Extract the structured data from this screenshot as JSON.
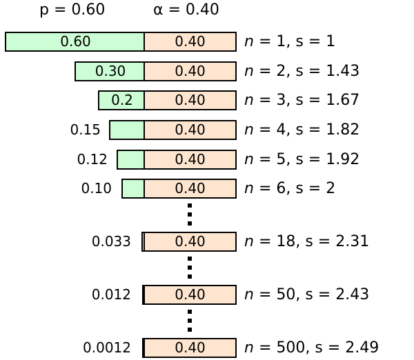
{
  "header": {
    "p_label": "p = 0.60",
    "alpha_label": "α = 0.40"
  },
  "rows": [
    {
      "p": "0.60",
      "p_inside": true,
      "alpha": "0.40",
      "n_var": "n",
      "n_rest": " = 1, s = 1"
    },
    {
      "p": "0.30",
      "p_inside": true,
      "alpha": "0.40",
      "n_var": "n",
      "n_rest": " = 2, s = 1.43"
    },
    {
      "p": "0.2",
      "p_inside": true,
      "alpha": "0.40",
      "n_var": "n",
      "n_rest": " = 3, s = 1.67"
    },
    {
      "p": "0.15",
      "p_inside": false,
      "alpha": "0.40",
      "n_var": "n",
      "n_rest": " = 4, s = 1.82"
    },
    {
      "p": "0.12",
      "p_inside": false,
      "alpha": "0.40",
      "n_var": "n",
      "n_rest": " = 5, s = 1.92"
    },
    {
      "p": "0.10",
      "p_inside": false,
      "alpha": "0.40",
      "n_var": "n",
      "n_rest": " = 6, s = 2"
    },
    {
      "p": "0.033",
      "p_inside": false,
      "alpha": "0.40",
      "n_var": "n",
      "n_rest": " = 18, s = 2.31"
    },
    {
      "p": "0.012",
      "p_inside": false,
      "alpha": "0.40",
      "n_var": "n",
      "n_rest": " = 50, s = 2.43"
    },
    {
      "p": "0.0012",
      "p_inside": false,
      "alpha": "0.40",
      "n_var": "n",
      "n_rest": " = 500, s = 2.49"
    }
  ]
}
